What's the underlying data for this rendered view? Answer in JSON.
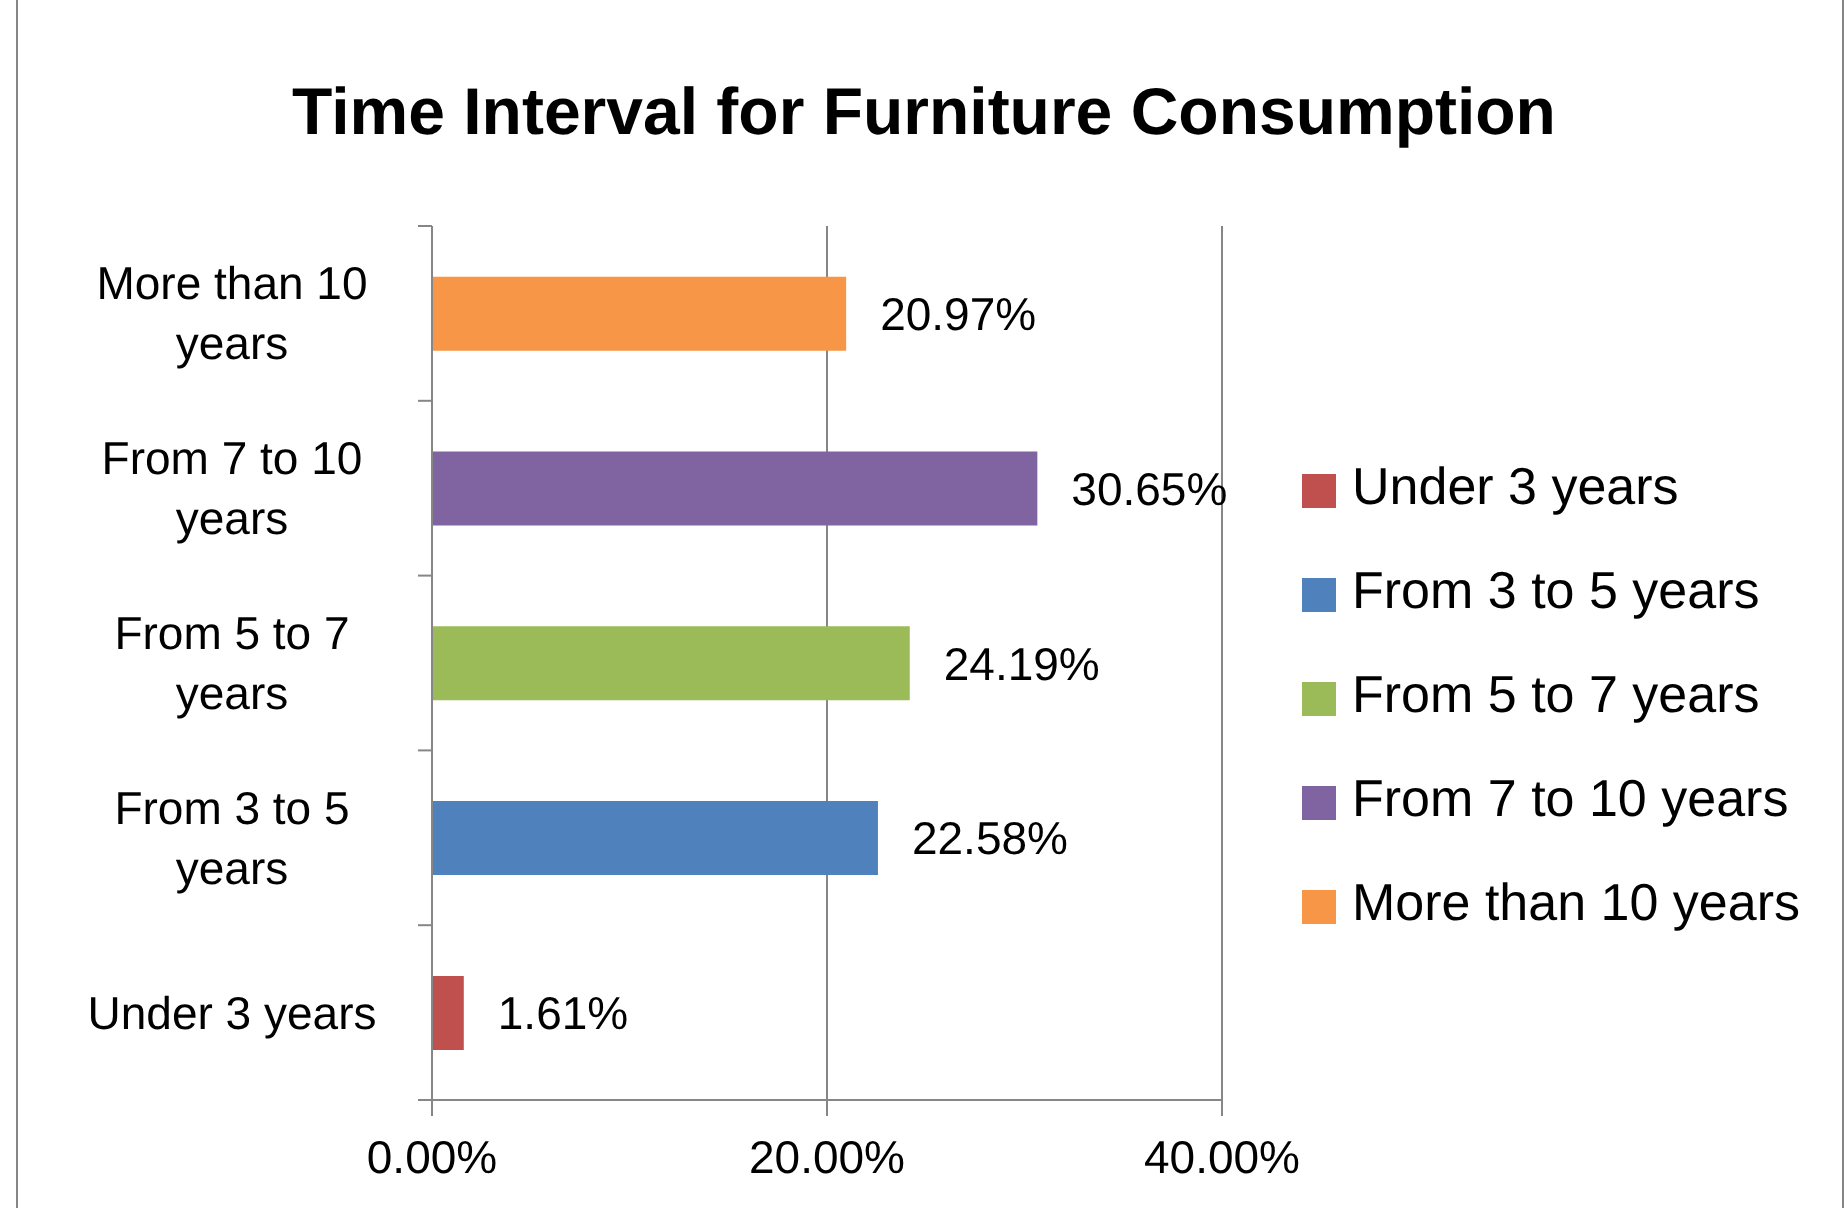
{
  "chart_data": {
    "type": "bar",
    "orientation": "horizontal",
    "stacked": true,
    "title": "Time Interval for Furniture Consumption",
    "categories": [
      "More than 10 years",
      "From 7 to 10 years",
      "From 5 to 7 years",
      "From 3 to 5 years",
      "Under 3 years"
    ],
    "series": [
      {
        "name": "Under 3 years",
        "color": "#c0504d",
        "values": [
          null,
          null,
          null,
          null,
          1.61
        ],
        "value_labels": [
          null,
          null,
          null,
          null,
          "1.61%"
        ]
      },
      {
        "name": "From 3 to 5 years",
        "color": "#4f81bd",
        "values": [
          null,
          null,
          null,
          22.58,
          null
        ],
        "value_labels": [
          null,
          null,
          null,
          "22.58%",
          null
        ]
      },
      {
        "name": "From 5 to 7 years",
        "color": "#9bbb59",
        "values": [
          null,
          null,
          24.19,
          null,
          null
        ],
        "value_labels": [
          null,
          null,
          "24.19%",
          null,
          null
        ]
      },
      {
        "name": "From 7 to 10 years",
        "color": "#8064a2",
        "values": [
          null,
          30.65,
          null,
          null,
          null
        ],
        "value_labels": [
          null,
          "30.65%",
          null,
          null,
          null
        ]
      },
      {
        "name": "More than 10 years",
        "color": "#f79646",
        "values": [
          20.97,
          null,
          null,
          null,
          null
        ],
        "value_labels": [
          "20.97%",
          null,
          null,
          null,
          null
        ]
      }
    ],
    "xlim": [
      0,
      40
    ],
    "xticks": [
      {
        "value": 0,
        "label": "0.00%"
      },
      {
        "value": 20,
        "label": "20.00%"
      },
      {
        "value": 40,
        "label": "40.00%"
      }
    ],
    "grid": "x",
    "legend": "right"
  }
}
